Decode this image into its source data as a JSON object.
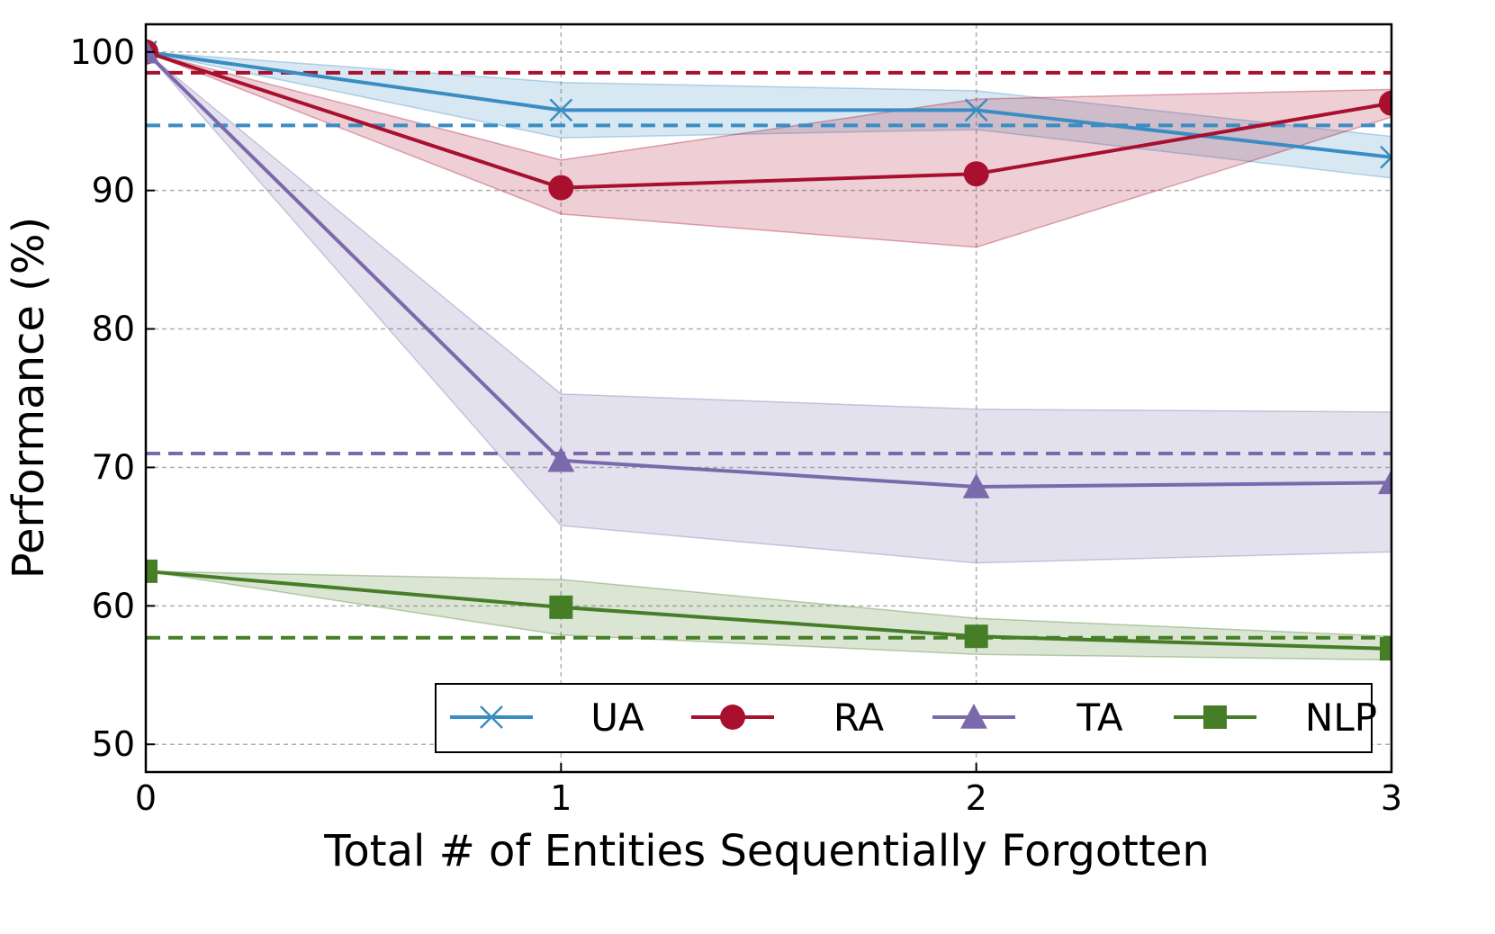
{
  "chart_data": {
    "type": "line",
    "title": "",
    "xlabel": "Total # of Entities Sequentially Forgotten",
    "ylabel": "Performance (%)",
    "x": [
      0,
      1,
      2,
      3
    ],
    "xlim": [
      0,
      3
    ],
    "ylim": [
      48,
      102
    ],
    "xticks": [
      "0",
      "1",
      "2",
      "3"
    ],
    "yticks": [
      "50",
      "60",
      "70",
      "80",
      "90",
      "100"
    ],
    "grid": true,
    "legend_position": "bottom-right",
    "series": [
      {
        "name": "UA",
        "color": "#3a8dc2",
        "marker": "x",
        "values": [
          100,
          95.8,
          95.8,
          92.4
        ],
        "band_upper": [
          100,
          97.8,
          97.2,
          93.9
        ],
        "band_lower": [
          100,
          93.8,
          94.4,
          90.9
        ],
        "baseline": 94.7
      },
      {
        "name": "RA",
        "color": "#a8102e",
        "marker": "circle",
        "values": [
          100,
          90.2,
          91.2,
          96.3
        ],
        "band_upper": [
          100,
          92.2,
          96.6,
          97.3
        ],
        "band_lower": [
          100,
          88.3,
          85.9,
          95.3
        ],
        "baseline": 98.5
      },
      {
        "name": "TA",
        "color": "#7a6aab",
        "marker": "triangle",
        "values": [
          100,
          70.5,
          68.6,
          68.9
        ],
        "band_upper": [
          100,
          75.3,
          74.2,
          74.0
        ],
        "band_lower": [
          100,
          65.8,
          63.1,
          63.9
        ],
        "baseline": 71.0
      },
      {
        "name": "NLP",
        "color": "#467e27",
        "marker": "square",
        "values": [
          62.5,
          59.9,
          57.8,
          56.9
        ],
        "band_upper": [
          62.5,
          61.9,
          59.1,
          57.8
        ],
        "band_lower": [
          62.5,
          57.9,
          56.5,
          56.1
        ],
        "baseline": 57.7
      }
    ]
  }
}
